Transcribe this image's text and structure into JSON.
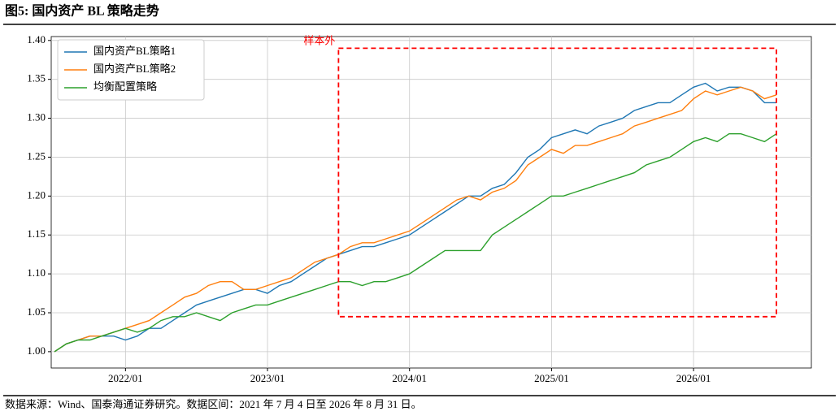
{
  "chart_data": {
    "type": "line",
    "title": "图5:  国内资产 BL 策略走势",
    "source": "数据来源：Wind、国泰海通证券研究。数据区间：2021 年 7 月 4 日至 2026 年 8 月 31 日。",
    "x": [
      "2021/07",
      "2021/08",
      "2021/09",
      "2021/10",
      "2021/11",
      "2021/12",
      "2022/01",
      "2022/02",
      "2022/03",
      "2022/04",
      "2022/05",
      "2022/06",
      "2022/07",
      "2022/08",
      "2022/09",
      "2022/10",
      "2022/11",
      "2022/12",
      "2023/01",
      "2023/02",
      "2023/03",
      "2023/04",
      "2023/05",
      "2023/06",
      "2023/07",
      "2023/08",
      "2023/09",
      "2023/10",
      "2023/11",
      "2023/12",
      "2024/01",
      "2024/02",
      "2024/03",
      "2024/04",
      "2024/05",
      "2024/06",
      "2024/07",
      "2024/08",
      "2024/09",
      "2024/10",
      "2024/11",
      "2024/12",
      "2025/01",
      "2025/02",
      "2025/03",
      "2025/04",
      "2025/05",
      "2025/06",
      "2025/07",
      "2025/08",
      "2025/09",
      "2025/10",
      "2025/11",
      "2025/12",
      "2026/01",
      "2026/02",
      "2026/03",
      "2026/04",
      "2026/05",
      "2026/06",
      "2026/07",
      "2026/08"
    ],
    "xticks": [
      "2022/01",
      "2023/01",
      "2024/01",
      "2025/01",
      "2026/01"
    ],
    "ylim": [
      0.979,
      1.405
    ],
    "yticks": [
      {
        "value": 1,
        "label": "1.00"
      },
      {
        "value": 1.05,
        "label": "1.05"
      },
      {
        "value": 1.1,
        "label": "1.10"
      },
      {
        "value": 1.15,
        "label": "1.15"
      },
      {
        "value": 1.2,
        "label": "1.20"
      },
      {
        "value": 1.25,
        "label": "1.25"
      },
      {
        "value": 1.3,
        "label": "1.30"
      },
      {
        "value": 1.35,
        "label": "1.35"
      },
      {
        "value": 1.4,
        "label": "1.40"
      }
    ],
    "grid": true,
    "legend": "upper-left",
    "series": [
      {
        "name": "国内资产BL策略1",
        "color": "#1f77b4",
        "values": [
          1.0,
          1.01,
          1.015,
          1.02,
          1.02,
          1.02,
          1.015,
          1.02,
          1.03,
          1.03,
          1.04,
          1.05,
          1.06,
          1.065,
          1.07,
          1.075,
          1.08,
          1.08,
          1.075,
          1.085,
          1.09,
          1.1,
          1.11,
          1.12,
          1.125,
          1.13,
          1.135,
          1.135,
          1.14,
          1.145,
          1.15,
          1.16,
          1.17,
          1.18,
          1.19,
          1.2,
          1.2,
          1.21,
          1.215,
          1.23,
          1.25,
          1.26,
          1.275,
          1.28,
          1.285,
          1.28,
          1.29,
          1.295,
          1.3,
          1.31,
          1.315,
          1.32,
          1.32,
          1.33,
          1.34,
          1.345,
          1.335,
          1.34,
          1.34,
          1.335,
          1.32,
          1.32
        ]
      },
      {
        "name": "国内资产BL策略2",
        "color": "#ff7f0e",
        "values": [
          1.0,
          1.01,
          1.015,
          1.02,
          1.02,
          1.025,
          1.03,
          1.035,
          1.04,
          1.05,
          1.06,
          1.07,
          1.075,
          1.085,
          1.09,
          1.09,
          1.08,
          1.08,
          1.085,
          1.09,
          1.095,
          1.105,
          1.115,
          1.12,
          1.125,
          1.135,
          1.14,
          1.14,
          1.145,
          1.15,
          1.155,
          1.165,
          1.175,
          1.185,
          1.195,
          1.2,
          1.195,
          1.205,
          1.21,
          1.22,
          1.24,
          1.25,
          1.26,
          1.255,
          1.265,
          1.265,
          1.27,
          1.275,
          1.28,
          1.29,
          1.295,
          1.3,
          1.305,
          1.31,
          1.325,
          1.335,
          1.33,
          1.335,
          1.34,
          1.335,
          1.325,
          1.33
        ]
      },
      {
        "name": "均衡配置策略",
        "color": "#2ca02c",
        "values": [
          1.0,
          1.01,
          1.015,
          1.015,
          1.02,
          1.025,
          1.03,
          1.025,
          1.03,
          1.04,
          1.045,
          1.045,
          1.05,
          1.045,
          1.04,
          1.05,
          1.055,
          1.06,
          1.06,
          1.065,
          1.07,
          1.075,
          1.08,
          1.085,
          1.09,
          1.09,
          1.085,
          1.09,
          1.09,
          1.095,
          1.1,
          1.11,
          1.12,
          1.13,
          1.13,
          1.13,
          1.13,
          1.15,
          1.16,
          1.17,
          1.18,
          1.19,
          1.2,
          1.2,
          1.205,
          1.21,
          1.215,
          1.22,
          1.225,
          1.23,
          1.24,
          1.245,
          1.25,
          1.26,
          1.27,
          1.275,
          1.27,
          1.28,
          1.28,
          1.275,
          1.27,
          1.28
        ]
      }
    ],
    "annotation": {
      "text": "样本外",
      "color": "#ff0000",
      "x_range": [
        "2023/07",
        "2026/08"
      ],
      "y_range": [
        1.045,
        1.39
      ]
    }
  }
}
